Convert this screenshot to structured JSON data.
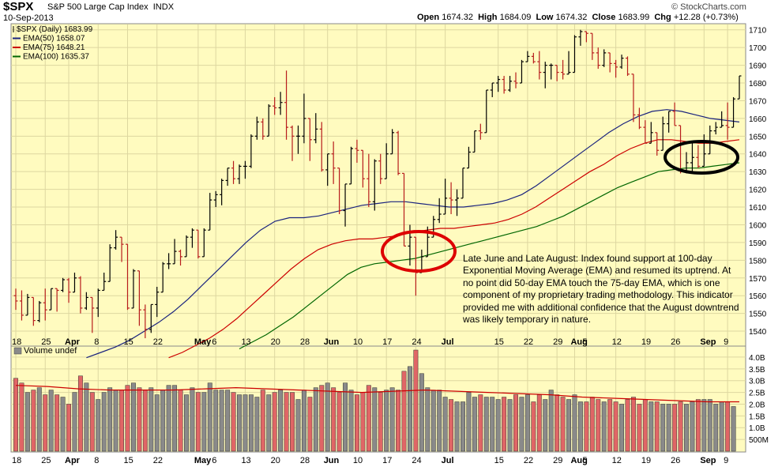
{
  "header": {
    "symbol": "$SPX",
    "name": "S&P 500 Large Cap Index",
    "exchange": "INDX",
    "date": "10-Sep-2013",
    "copyright": "© StockCharts.com",
    "ohlc": {
      "open_label": "Open",
      "open": "1674.32",
      "high_label": "High",
      "high": "1684.09",
      "low_label": "Low",
      "low": "1674.32",
      "close_label": "Close",
      "close": "1683.99",
      "chg_label": "Chg",
      "chg": "+12.28 (+0.73%)"
    }
  },
  "legend": [
    {
      "label": "$SPX (Daily) 1683.99",
      "color": "#000000"
    },
    {
      "label": "EMA(50) 1658.07",
      "color": "#1a237e"
    },
    {
      "label": "EMA(75) 1648.21",
      "color": "#cc0000"
    },
    {
      "label": "EMA(100) 1635.37",
      "color": "#006600"
    }
  ],
  "volume_label": "Volume undef",
  "annotation": "Late June and Late August:  Index found support at 100-day Exponential Moving Average (EMA) and resumed its uptrend.  At no point did 50-day EMA touch the 75-day EMA, which is one component of my proprietary trading methodology.  This indicator provided me with additional confidence that the August downtrend was likely temporary in nature.",
  "colors": {
    "background": "#fffbbf",
    "up": "#000000",
    "down": "#b71c1c",
    "ema50": "#1a237e",
    "ema75": "#cc0000",
    "ema100": "#006600",
    "vol_up": "#8a8a8a",
    "vol_down": "#e06666",
    "vol_ma": "#cc0000",
    "circle_red": "#dd0000",
    "circle_black": "#000000"
  },
  "chart_data": [
    {
      "type": "candlestick",
      "title": "$SPX (Daily)",
      "y_ticks": [
        1540,
        1550,
        1560,
        1570,
        1580,
        1590,
        1600,
        1610,
        1620,
        1630,
        1640,
        1650,
        1660,
        1670,
        1680,
        1690,
        1700,
        1710
      ],
      "x_ticks": [
        "18",
        "25",
        "Apr",
        "8",
        "15",
        "22",
        "May",
        "6",
        "13",
        "20",
        "28",
        "Jun",
        "10",
        "17",
        "24",
        "Jul",
        "15",
        "22",
        "29",
        "Aug",
        "5",
        "12",
        "19",
        "26",
        "Sep",
        "9"
      ],
      "ylim": [
        1532,
        1713
      ],
      "dates": [
        "3-18",
        "3-19",
        "3-20",
        "3-21",
        "3-22",
        "3-25",
        "3-26",
        "3-27",
        "3-28",
        "4-1",
        "4-2",
        "4-3",
        "4-4",
        "4-5",
        "4-8",
        "4-9",
        "4-10",
        "4-11",
        "4-12",
        "4-15",
        "4-16",
        "4-17",
        "4-18",
        "4-19",
        "4-22",
        "4-23",
        "4-24",
        "4-25",
        "4-26",
        "4-29",
        "4-30",
        "5-1",
        "5-2",
        "5-3",
        "5-6",
        "5-7",
        "5-8",
        "5-9",
        "5-10",
        "5-13",
        "5-14",
        "5-15",
        "5-16",
        "5-17",
        "5-20",
        "5-21",
        "5-22",
        "5-23",
        "5-24",
        "5-28",
        "5-29",
        "5-30",
        "5-31",
        "6-3",
        "6-4",
        "6-5",
        "6-6",
        "6-7",
        "6-10",
        "6-11",
        "6-12",
        "6-13",
        "6-14",
        "6-17",
        "6-18",
        "6-19",
        "6-20",
        "6-21",
        "6-24",
        "6-25",
        "6-26",
        "6-27",
        "6-28",
        "7-1",
        "7-2",
        "7-3",
        "7-5",
        "7-8",
        "7-9",
        "7-10",
        "7-11",
        "7-12",
        "7-15",
        "7-16",
        "7-17",
        "7-18",
        "7-19",
        "7-22",
        "7-23",
        "7-24",
        "7-25",
        "7-26",
        "7-29",
        "7-30",
        "7-31",
        "8-1",
        "8-2",
        "8-5",
        "8-6",
        "8-7",
        "8-8",
        "8-9",
        "8-12",
        "8-13",
        "8-14",
        "8-15",
        "8-16",
        "8-19",
        "8-20",
        "8-21",
        "8-22",
        "8-23",
        "8-26",
        "8-27",
        "8-28",
        "8-29",
        "8-30",
        "9-3",
        "9-4",
        "9-5",
        "9-6",
        "9-9",
        "9-10"
      ],
      "ohlc": [
        [
          1560,
          1564,
          1552,
          1557
        ],
        [
          1557,
          1563,
          1546,
          1549
        ],
        [
          1549,
          1561,
          1549,
          1559
        ],
        [
          1559,
          1559,
          1543,
          1546
        ],
        [
          1546,
          1557,
          1545,
          1556
        ],
        [
          1556,
          1564,
          1546,
          1552
        ],
        [
          1552,
          1564,
          1552,
          1564
        ],
        [
          1564,
          1564,
          1551,
          1563
        ],
        [
          1563,
          1570,
          1562,
          1569
        ],
        [
          1569,
          1570,
          1556,
          1562
        ],
        [
          1562,
          1573,
          1562,
          1570
        ],
        [
          1570,
          1571,
          1550,
          1553
        ],
        [
          1553,
          1562,
          1552,
          1559
        ],
        [
          1559,
          1559,
          1539,
          1553
        ],
        [
          1553,
          1564,
          1548,
          1563
        ],
        [
          1563,
          1573,
          1563,
          1568
        ],
        [
          1568,
          1589,
          1568,
          1587
        ],
        [
          1587,
          1597,
          1586,
          1593
        ],
        [
          1593,
          1593,
          1579,
          1589
        ],
        [
          1589,
          1589,
          1552,
          1553
        ],
        [
          1553,
          1575,
          1553,
          1574
        ],
        [
          1574,
          1574,
          1543,
          1552
        ],
        [
          1552,
          1555,
          1536,
          1541
        ],
        [
          1541,
          1555,
          1539,
          1555
        ],
        [
          1555,
          1565,
          1548,
          1562
        ],
        [
          1562,
          1579,
          1562,
          1578
        ],
        [
          1578,
          1584,
          1575,
          1578
        ],
        [
          1578,
          1592,
          1578,
          1585
        ],
        [
          1585,
          1586,
          1577,
          1582
        ],
        [
          1582,
          1594,
          1582,
          1593
        ],
        [
          1593,
          1598,
          1587,
          1597
        ],
        [
          1597,
          1597,
          1581,
          1582
        ],
        [
          1582,
          1598,
          1582,
          1597
        ],
        [
          1597,
          1618,
          1597,
          1614
        ],
        [
          1614,
          1619,
          1610,
          1617
        ],
        [
          1617,
          1626,
          1611,
          1625
        ],
        [
          1625,
          1632,
          1622,
          1632
        ],
        [
          1632,
          1636,
          1623,
          1626
        ],
        [
          1626,
          1634,
          1623,
          1633
        ],
        [
          1633,
          1636,
          1626,
          1633
        ],
        [
          1633,
          1651,
          1632,
          1650
        ],
        [
          1650,
          1661,
          1648,
          1658
        ],
        [
          1658,
          1660,
          1648,
          1650
        ],
        [
          1650,
          1668,
          1650,
          1667
        ],
        [
          1667,
          1672,
          1662,
          1666
        ],
        [
          1666,
          1675,
          1662,
          1669
        ],
        [
          1669,
          1687,
          1648,
          1655
        ],
        [
          1655,
          1656,
          1636,
          1650
        ],
        [
          1650,
          1656,
          1640,
          1650
        ],
        [
          1650,
          1674,
          1646,
          1660
        ],
        [
          1660,
          1660,
          1636,
          1648
        ],
        [
          1648,
          1663,
          1646,
          1654
        ],
        [
          1654,
          1658,
          1630,
          1631
        ],
        [
          1631,
          1640,
          1622,
          1640
        ],
        [
          1640,
          1647,
          1623,
          1632
        ],
        [
          1632,
          1632,
          1606,
          1608
        ],
        [
          1608,
          1623,
          1599,
          1623
        ],
        [
          1623,
          1644,
          1623,
          1643
        ],
        [
          1643,
          1648,
          1635,
          1642
        ],
        [
          1642,
          1642,
          1621,
          1626
        ],
        [
          1626,
          1640,
          1610,
          1613
        ],
        [
          1613,
          1637,
          1608,
          1636
        ],
        [
          1636,
          1640,
          1623,
          1626
        ],
        [
          1626,
          1646,
          1626,
          1640
        ],
        [
          1640,
          1654,
          1640,
          1652
        ],
        [
          1652,
          1653,
          1628,
          1629
        ],
        [
          1629,
          1629,
          1588,
          1588
        ],
        [
          1588,
          1600,
          1577,
          1593
        ],
        [
          1593,
          1593,
          1560,
          1573
        ],
        [
          1573,
          1586,
          1573,
          1582
        ],
        [
          1582,
          1599,
          1582,
          1593
        ],
        [
          1593,
          1605,
          1593,
          1603
        ],
        [
          1603,
          1615,
          1601,
          1606
        ],
        [
          1606,
          1626,
          1606,
          1615
        ],
        [
          1615,
          1624,
          1606,
          1614
        ],
        [
          1614,
          1620,
          1605,
          1615
        ],
        [
          1615,
          1632,
          1615,
          1632
        ],
        [
          1632,
          1644,
          1632,
          1641
        ],
        [
          1641,
          1653,
          1641,
          1653
        ],
        [
          1653,
          1657,
          1648,
          1652
        ],
        [
          1652,
          1676,
          1652,
          1676
        ],
        [
          1676,
          1680,
          1672,
          1680
        ],
        [
          1680,
          1684,
          1675,
          1682
        ],
        [
          1682,
          1684,
          1674,
          1676
        ],
        [
          1676,
          1684,
          1675,
          1681
        ],
        [
          1681,
          1686,
          1677,
          1680
        ],
        [
          1680,
          1693,
          1680,
          1692
        ],
        [
          1692,
          1698,
          1692,
          1695
        ],
        [
          1695,
          1697,
          1691,
          1692
        ],
        [
          1692,
          1698,
          1682,
          1686
        ],
        [
          1686,
          1692,
          1677,
          1690
        ],
        [
          1690,
          1691,
          1682,
          1690
        ],
        [
          1690,
          1690,
          1681,
          1686
        ],
        [
          1686,
          1693,
          1682,
          1685
        ],
        [
          1685,
          1698,
          1685,
          1686
        ],
        [
          1686,
          1707,
          1686,
          1706
        ],
        [
          1706,
          1710,
          1701,
          1709
        ],
        [
          1709,
          1709,
          1703,
          1708
        ],
        [
          1708,
          1708,
          1693,
          1697
        ],
        [
          1697,
          1700,
          1688,
          1690
        ],
        [
          1690,
          1699,
          1689,
          1697
        ],
        [
          1697,
          1697,
          1686,
          1691
        ],
        [
          1691,
          1693,
          1683,
          1689
        ],
        [
          1689,
          1696,
          1688,
          1694
        ],
        [
          1694,
          1695,
          1684,
          1685
        ],
        [
          1685,
          1685,
          1658,
          1662
        ],
        [
          1662,
          1666,
          1654,
          1655
        ],
        [
          1655,
          1659,
          1646,
          1646
        ],
        [
          1646,
          1658,
          1646,
          1652
        ],
        [
          1652,
          1652,
          1639,
          1642
        ],
        [
          1642,
          1661,
          1642,
          1657
        ],
        [
          1657,
          1664,
          1652,
          1664
        ],
        [
          1664,
          1669,
          1656,
          1656
        ],
        [
          1656,
          1656,
          1629,
          1630
        ],
        [
          1630,
          1641,
          1629,
          1635
        ],
        [
          1635,
          1646,
          1630,
          1638
        ],
        [
          1638,
          1645,
          1632,
          1633
        ],
        [
          1633,
          1651,
          1633,
          1640
        ],
        [
          1640,
          1656,
          1640,
          1653
        ],
        [
          1653,
          1658,
          1651,
          1655
        ],
        [
          1655,
          1664,
          1655,
          1656
        ],
        [
          1656,
          1669,
          1648,
          1655
        ],
        [
          1655,
          1672,
          1655,
          1671
        ],
        [
          1671,
          1684,
          1671,
          1684
        ]
      ],
      "ema": [
        {
          "name": "EMA(50)",
          "start": "4-4",
          "values": [
            1525,
            1528,
            1531,
            1535,
            1540,
            1545,
            1551,
            1558,
            1566,
            1574,
            1582,
            1590,
            1597,
            1602,
            1604,
            1604,
            1605,
            1607,
            1609,
            1611,
            1612,
            1613,
            1613,
            1612,
            1611,
            1610,
            1610,
            1611,
            1612,
            1614,
            1617,
            1622,
            1628,
            1634,
            1640,
            1646,
            1652,
            1657,
            1661,
            1664,
            1665,
            1664,
            1662,
            1660,
            1659,
            1658
          ]
        },
        {
          "name": "EMA(75)",
          "start": "4-24",
          "values": [
            1525,
            1528,
            1532,
            1536,
            1541,
            1547,
            1554,
            1561,
            1568,
            1575,
            1581,
            1586,
            1589,
            1591,
            1592,
            1592,
            1593,
            1594,
            1596,
            1597,
            1598,
            1598,
            1599,
            1600,
            1601,
            1603,
            1606,
            1610,
            1615,
            1620,
            1625,
            1630,
            1634,
            1639,
            1643,
            1646,
            1648,
            1648,
            1647,
            1646,
            1646,
            1647,
            1648
          ]
        },
        {
          "name": "EMA(100)",
          "start": "5-10",
          "values": [
            1530,
            1534,
            1538,
            1543,
            1548,
            1554,
            1560,
            1566,
            1572,
            1576,
            1578,
            1579,
            1580,
            1581,
            1583,
            1585,
            1587,
            1589,
            1591,
            1593,
            1595,
            1597,
            1599,
            1602,
            1605,
            1609,
            1613,
            1617,
            1621,
            1624,
            1627,
            1630,
            1631,
            1632,
            1632,
            1633,
            1634,
            1635
          ]
        }
      ]
    },
    {
      "type": "bar",
      "title": "Volume",
      "y_ticks": [
        "500M",
        "1.0B",
        "1.5B",
        "2.0B",
        "2.5B",
        "3.0B",
        "3.5B",
        "4.0B"
      ],
      "ylim": [
        0,
        4.3
      ],
      "unit": "billions",
      "values": [
        3.1,
        2.9,
        2.5,
        2.6,
        2.7,
        2.4,
        2.6,
        2.4,
        2.3,
        2.0,
        2.5,
        3.2,
        2.9,
        2.5,
        2.2,
        2.5,
        2.7,
        2.6,
        2.6,
        2.8,
        2.9,
        2.7,
        2.6,
        2.7,
        2.4,
        2.6,
        2.8,
        2.8,
        2.6,
        2.4,
        2.7,
        2.5,
        2.5,
        2.9,
        2.6,
        2.6,
        2.6,
        2.5,
        2.4,
        2.4,
        2.4,
        2.3,
        2.6,
        2.4,
        2.5,
        2.6,
        2.5,
        2.5,
        2.2,
        2.6,
        2.3,
        2.7,
        2.8,
        2.9,
        2.7,
        2.5,
        2.9,
        2.6,
        2.4,
        2.5,
        2.8,
        2.7,
        2.5,
        2.6,
        2.7,
        2.6,
        3.4,
        3.6,
        4.3,
        3.3,
        2.7,
        2.6,
        2.6,
        2.3,
        2.2,
        2.1,
        2.1,
        2.5,
        2.3,
        2.4,
        2.3,
        2.3,
        2.2,
        2.3,
        2.2,
        2.4,
        2.3,
        2.4,
        2.1,
        2.4,
        2.2,
        2.6,
        2.4,
        2.3,
        2.2,
        2.4,
        2.1,
        2.1,
        2.3,
        2.2,
        2.1,
        2.2,
        2.1,
        2.0,
        2.2,
        2.3,
        2.0,
        2.2,
        2.1,
        2.1,
        2.0,
        2.0,
        2.0,
        2.1,
        2.0,
        2.1,
        2.2,
        2.2,
        2.2,
        2.0,
        2.1,
        2.1,
        1.9
      ],
      "ma": [
        2.8,
        2.75,
        2.65,
        2.6,
        2.6,
        2.6,
        2.65,
        2.7,
        2.65,
        2.6,
        2.55,
        2.5,
        2.55,
        2.6,
        2.55,
        2.5,
        2.45,
        2.4,
        2.3,
        2.25,
        2.2,
        2.15,
        2.1,
        2.1
      ]
    }
  ]
}
